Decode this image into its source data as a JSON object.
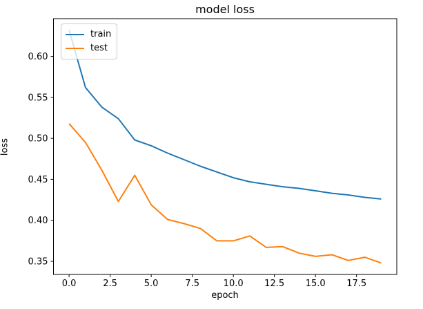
{
  "chart_data": {
    "type": "line",
    "title": "model loss",
    "xlabel": "epoch",
    "ylabel": "loss",
    "x": [
      0,
      1,
      2,
      3,
      4,
      5,
      6,
      7,
      8,
      9,
      10,
      11,
      12,
      13,
      14,
      15,
      16,
      17,
      18,
      19
    ],
    "series": [
      {
        "name": "train",
        "color": "#1f77b4",
        "values": [
          0.632,
          0.562,
          0.538,
          0.524,
          0.498,
          0.491,
          0.482,
          0.474,
          0.466,
          0.459,
          0.452,
          0.447,
          0.444,
          0.441,
          0.439,
          0.436,
          0.433,
          0.431,
          0.428,
          0.426
        ]
      },
      {
        "name": "test",
        "color": "#ff7f0e",
        "values": [
          0.518,
          0.495,
          0.461,
          0.423,
          0.455,
          0.419,
          0.401,
          0.396,
          0.39,
          0.375,
          0.375,
          0.381,
          0.367,
          0.368,
          0.36,
          0.356,
          0.358,
          0.351,
          0.355,
          0.348
        ]
      }
    ],
    "xlim": [
      -0.95,
      19.95
    ],
    "ylim": [
      0.334,
      0.646
    ],
    "xticks": [
      0,
      2.5,
      5,
      7.5,
      10,
      12.5,
      15,
      17.5
    ],
    "xtick_labels": [
      "0.0",
      "2.5",
      "5.0",
      "7.5",
      "10.0",
      "12.5",
      "15.0",
      "17.5"
    ],
    "yticks": [
      0.35,
      0.4,
      0.45,
      0.5,
      0.55,
      0.6
    ],
    "ytick_labels": [
      "0.35",
      "0.40",
      "0.45",
      "0.50",
      "0.55",
      "0.60"
    ],
    "grid": false,
    "legend": {
      "position": "upper-left",
      "entries": [
        "train",
        "test"
      ]
    }
  },
  "colors": {
    "background": "#ffffff",
    "spine": "#000000",
    "tick_text": "#000000",
    "legend_border": "#cccccc",
    "train_line": "#1f77b4",
    "test_line": "#ff7f0e"
  }
}
